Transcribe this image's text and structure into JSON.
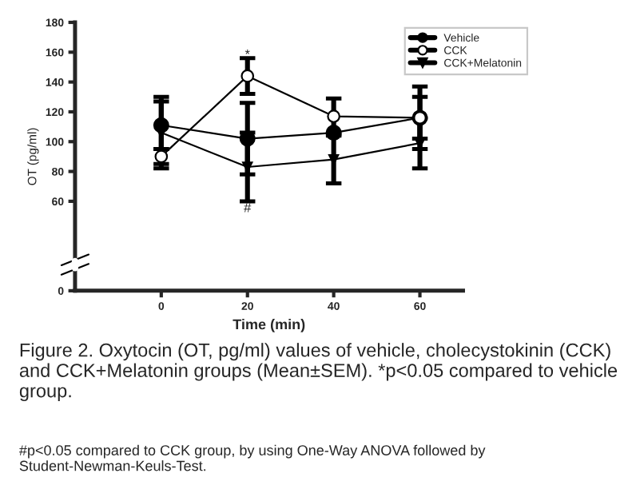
{
  "chart_data": {
    "type": "line",
    "xlabel": "Time (min)",
    "ylabel": "OT (pg/ml)",
    "x": [
      0,
      20,
      40,
      60
    ],
    "series": [
      {
        "name": "Vehicle",
        "color": "#000000",
        "marker": "circle",
        "values": [
          111,
          102,
          106,
          116
        ],
        "errors": [
          16,
          24,
          null,
          14
        ]
      },
      {
        "name": "CCK",
        "color": "#000000",
        "marker": "open circle",
        "values": [
          90,
          144,
          117,
          116
        ],
        "errors": [
          5,
          12,
          12,
          21
        ]
      },
      {
        "name": "CCK+Melatonin",
        "color": "#000000",
        "marker": "triangle",
        "values": [
          106,
          83,
          88,
          99
        ],
        "errors": [
          24,
          23,
          16,
          17
        ]
      }
    ],
    "xlim": [
      -20,
      70
    ],
    "xticks": [
      0,
      20,
      40,
      60
    ],
    "ylim": [
      0,
      180
    ],
    "yticks": [
      0,
      60,
      80,
      100,
      120,
      140,
      160,
      180
    ],
    "legend": "top right",
    "grid": false,
    "annotations": [
      {
        "text": "*",
        "x": 20,
        "y": 158
      },
      {
        "text": "#",
        "x": 20,
        "y": 55
      },
      "Figure 2. Oxytocin (OT, pg/ml) values of vehicle, cholecystokinin (CCK) and CCK+Melatonin groups (Mean±SEM). *p<0.05 compared to vehicle group.",
      "#p<0.05 compared to CCK group, by using One-Way ANOVA followed by Student-Newman-Keuls-Test."
    ]
  }
}
